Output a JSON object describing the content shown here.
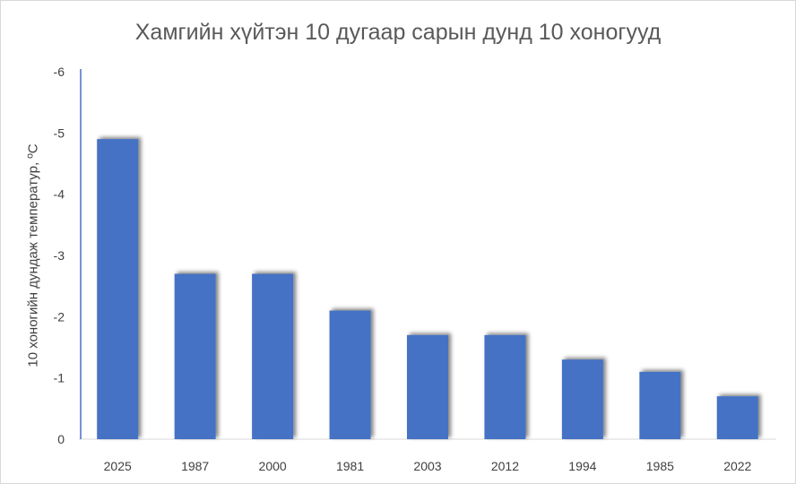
{
  "chart_data": {
    "type": "bar",
    "title": "Хамгийн хүйтэн  10 дугаар сарын дунд 10 хоногууд",
    "xlabel": "",
    "ylabel": "10 хоногийн дундаж температур, ºC",
    "categories": [
      "2025",
      "1987",
      "2000",
      "1981",
      "2003",
      "2012",
      "1994",
      "1985",
      "2022"
    ],
    "values": [
      -4.9,
      -2.7,
      -2.7,
      -2.1,
      -1.7,
      -1.7,
      -1.3,
      -1.1,
      -0.7
    ],
    "ylim": [
      0,
      -6
    ],
    "y_axis_inverted": true,
    "yticks": [
      "0",
      "-1",
      "-2",
      "-3",
      "-4",
      "-5",
      "-6"
    ],
    "ytick_values": [
      0,
      -1,
      -2,
      -3,
      -4,
      -5,
      -6
    ],
    "grid": false,
    "legend": "none",
    "bar_color": "#4472c4",
    "axis_color": "#4472c4"
  }
}
